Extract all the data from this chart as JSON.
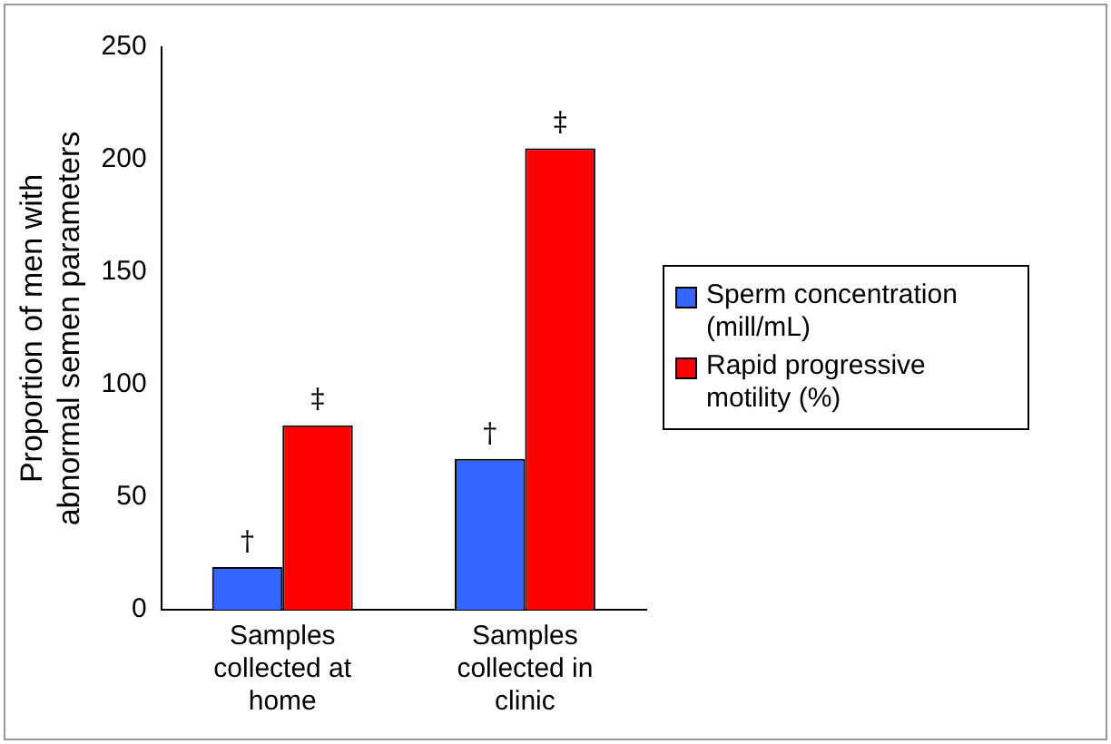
{
  "chart_data": {
    "type": "bar",
    "ylabel": "Proportion of men with abnormal semen parameters",
    "categories": [
      "Samples collected at home",
      "Samples collected in clinic"
    ],
    "series": [
      {
        "name": "Sperm concentration (mill/mL)",
        "color": "#3366ff",
        "values": [
          19,
          67
        ]
      },
      {
        "name": "Rapid progressive motility (%)",
        "color": "#ff0000",
        "values": [
          82,
          205
        ]
      }
    ],
    "ylim": [
      0,
      250
    ],
    "yticks": [
      0,
      50,
      100,
      150,
      200,
      250
    ],
    "grid": false,
    "legend": "right",
    "annotations": [
      {
        "text": "†",
        "x": "Samples collected at home",
        "y": 19
      },
      {
        "text": "‡",
        "x": "Samples collected at home",
        "y": 82
      },
      {
        "text": "†",
        "x": "Samples collected in clinic",
        "y": 67
      },
      {
        "text": "‡",
        "x": "Samples collected in clinic",
        "y": 205
      }
    ]
  }
}
